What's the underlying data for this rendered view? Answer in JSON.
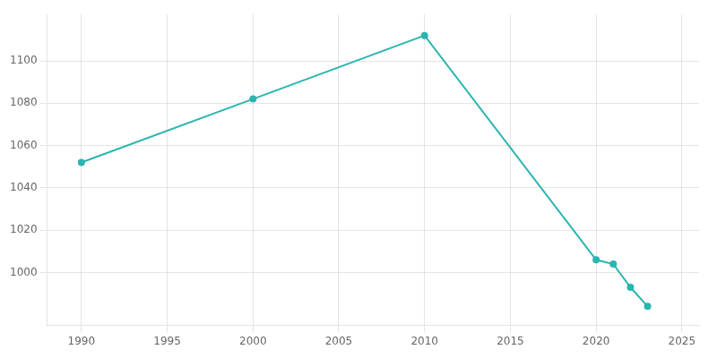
{
  "chart_data": {
    "type": "line",
    "x": [
      1990,
      2000,
      2010,
      2020,
      2021,
      2022,
      2023
    ],
    "values": [
      1052,
      1082,
      1112,
      1006,
      1004,
      993,
      984
    ],
    "color": "#2ab5b0",
    "marker": "circle",
    "xlim": [
      1988,
      2026
    ],
    "ylim": [
      975,
      1122
    ],
    "xticks": [
      1990,
      1995,
      2000,
      2005,
      2010,
      2015,
      2020,
      2025
    ],
    "yticks": [
      1000,
      1020,
      1040,
      1060,
      1080,
      1100
    ],
    "grid": true
  }
}
